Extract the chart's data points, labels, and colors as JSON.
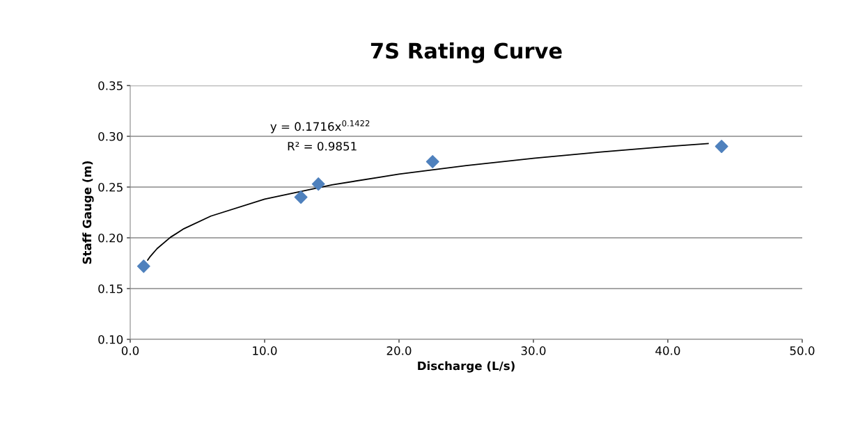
{
  "chart_data": {
    "type": "scatter",
    "title": "7S Rating Curve",
    "xlabel": "Discharge (L/s)",
    "ylabel": "Staff Gauge (m)",
    "series": [
      {
        "color": "#4f81bd",
        "marker": "diamond",
        "x": [
          1.0,
          12.7,
          14.0,
          22.5,
          44.0
        ],
        "values": [
          0.172,
          0.24,
          0.253,
          0.275,
          0.29
        ]
      },
      {
        "type": "line",
        "color": "#000000",
        "marker": "none",
        "line_style": "solid",
        "x": [
          1.3,
          1.5,
          2,
          3,
          4,
          6,
          10,
          15,
          20,
          25,
          30,
          35,
          40,
          43
        ],
        "values": [
          0.1781,
          0.1818,
          0.1894,
          0.2006,
          0.209,
          0.2214,
          0.2381,
          0.2522,
          0.2627,
          0.2712,
          0.2783,
          0.2845,
          0.29,
          0.2929
        ]
      }
    ],
    "annotations": [
      "y = 0.1716x$^{0.1422}$",
      "R² = 0.9851"
    ],
    "xlim": [
      0,
      50
    ],
    "xticks": [
      {
        "value": 0,
        "label": "0.0"
      },
      {
        "value": 10,
        "label": "10.0"
      },
      {
        "value": 20,
        "label": "20.0"
      },
      {
        "value": 30,
        "label": "30.0"
      },
      {
        "value": 40,
        "label": "40.0"
      },
      {
        "value": 50,
        "label": "50.0"
      }
    ],
    "ylim": [
      0.1,
      0.35
    ],
    "yticks": [
      {
        "value": 0.1,
        "label": "0.10"
      },
      {
        "value": 0.15,
        "label": "0.15"
      },
      {
        "value": 0.2,
        "label": "0.20"
      },
      {
        "value": 0.25,
        "label": "0.25"
      },
      {
        "value": 0.3,
        "label": "0.30"
      },
      {
        "value": 0.35,
        "label": "0.35"
      }
    ],
    "grid": "y",
    "legend": false
  }
}
